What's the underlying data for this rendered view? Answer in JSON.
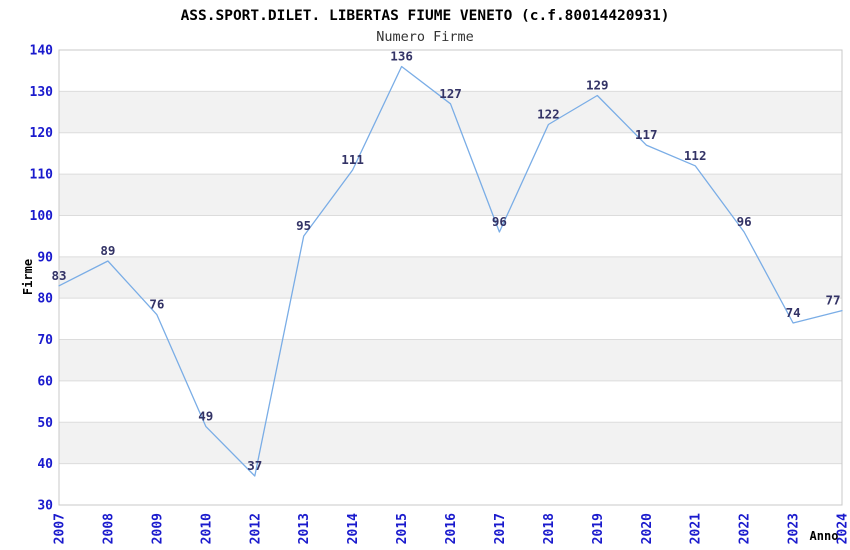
{
  "chart_data": {
    "type": "line",
    "title": "ASS.SPORT.DILET. LIBERTAS FIUME VENETO (c.f.80014420931)",
    "subtitle": "Numero Firme",
    "xlabel": "Anno",
    "ylabel": "Firme",
    "categories": [
      "2007",
      "2008",
      "2009",
      "2010",
      "2012",
      "2013",
      "2014",
      "2015",
      "2016",
      "2017",
      "2018",
      "2019",
      "2020",
      "2021",
      "2022",
      "2023",
      "2024"
    ],
    "values": [
      83,
      89,
      76,
      49,
      37,
      95,
      111,
      136,
      127,
      96,
      122,
      129,
      117,
      112,
      96,
      74,
      77
    ],
    "ylim": [
      30,
      140
    ],
    "ytick_step": 10,
    "grid": true,
    "legend": "none",
    "style": {
      "alternating_horizontal_bands": true,
      "value_labels_shown": true,
      "x_labels_rotated_90": true
    },
    "colors": {
      "line": "#7aade6",
      "value_label": "#333366",
      "tick_label": "#1a1acd",
      "band": "#f2f2f2",
      "gridline": "#dcdcdc",
      "plot_border": "#c8c8c8",
      "title": "#000000",
      "subtitle": "#333333",
      "axis_title": "#000000",
      "background": "#ffffff"
    }
  }
}
